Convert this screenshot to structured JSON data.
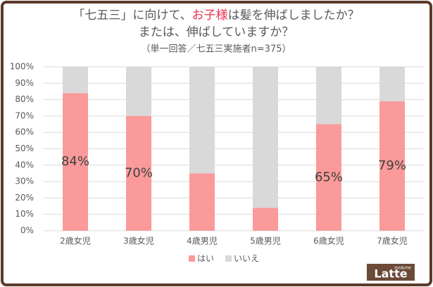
{
  "chart_data": {
    "type": "stacked_bar",
    "title": {
      "line1": [
        "「七五三」に向けて、",
        "お子様",
        "は髪を伸ばしましたか？"
      ],
      "line2": "または、伸ばしていますか？"
    },
    "highlight_color": "#e8304a",
    "subtitle": "（単一回答／七五三実施者n=375）",
    "categories": [
      "2歳女児",
      "3歳女児",
      "4歳男児",
      "5歳男児",
      "6歳女児",
      "7歳女児"
    ],
    "series": [
      {
        "name": "はい",
        "color": "#fa9a9a",
        "values": [
          84,
          70,
          35,
          14,
          65,
          79
        ],
        "value_labels": [
          "84%",
          "70%",
          null,
          null,
          "65%",
          "79%"
        ]
      },
      {
        "name": "いいえ",
        "color": "#d9d9d9",
        "values": [
          16,
          30,
          65,
          86,
          35,
          21
        ]
      }
    ],
    "ylim": [
      0,
      100
    ],
    "yticks": [
      {
        "value": 0,
        "label": "0%"
      },
      {
        "value": 10,
        "label": "10%"
      },
      {
        "value": 20,
        "label": "20%"
      },
      {
        "value": 30,
        "label": "30%"
      },
      {
        "value": 40,
        "label": "40%"
      },
      {
        "value": 50,
        "label": "50%"
      },
      {
        "value": 60,
        "label": "60%"
      },
      {
        "value": 70,
        "label": "70%"
      },
      {
        "value": 80,
        "label": "80%"
      },
      {
        "value": 90,
        "label": "90%"
      },
      {
        "value": 100,
        "label": "100%"
      }
    ],
    "grid": true,
    "logo": {
      "small": "mo&me",
      "text": "Latte"
    }
  }
}
